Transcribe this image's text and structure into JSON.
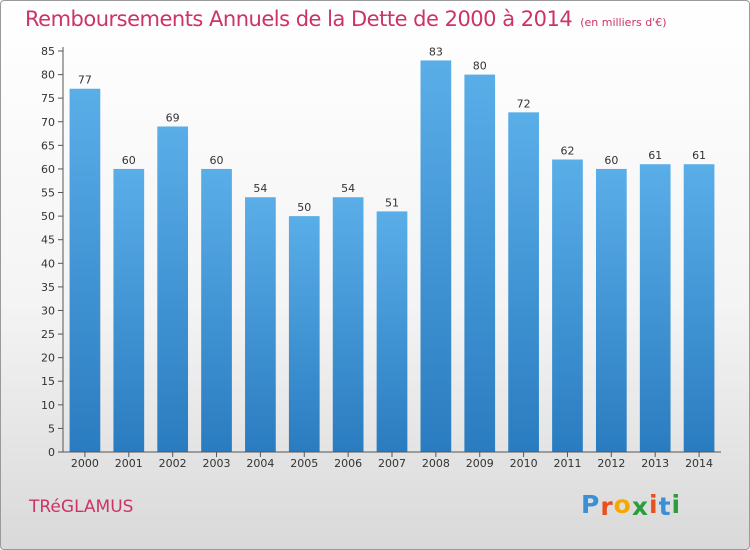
{
  "chart_data": {
    "type": "bar",
    "title": "Remboursements Annuels de la Dette de 2000 à 2014",
    "subtitle": "(en milliers d'€)",
    "categories": [
      "2000",
      "2001",
      "2002",
      "2003",
      "2004",
      "2005",
      "2006",
      "2007",
      "2008",
      "2009",
      "2010",
      "2011",
      "2012",
      "2013",
      "2014"
    ],
    "values": [
      77,
      60,
      69,
      60,
      54,
      50,
      54,
      51,
      83,
      80,
      72,
      62,
      60,
      61,
      61
    ],
    "ylim": [
      0,
      85
    ],
    "ytick_step": 5,
    "grid": false,
    "bar_color_top": "#5aaee8",
    "bar_color_bottom": "#2a7cc0"
  },
  "footer": {
    "town": "TRéGLAMUS",
    "logo_letters": [
      "P",
      "r",
      "o",
      "x",
      "i",
      "t",
      "i"
    ],
    "logo_colors": [
      "#3a8fd6",
      "#e8501e",
      "#f5a800",
      "#2a9d3c",
      "#e8501e",
      "#3a8fd6",
      "#2a9d3c"
    ]
  }
}
